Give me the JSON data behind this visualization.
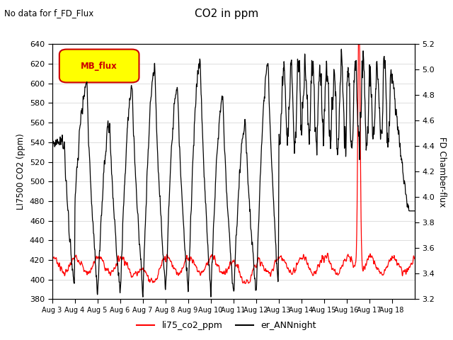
{
  "title": "CO2 in ppm",
  "subtitle": "No data for f_FD_Flux",
  "ylabel_left": "LI7500 CO2 (ppm)",
  "ylabel_right": "FD Chamber-flux",
  "ylim_left": [
    380,
    640
  ],
  "ylim_right": [
    3.2,
    5.2
  ],
  "yticks_left": [
    380,
    400,
    420,
    440,
    460,
    480,
    500,
    520,
    540,
    560,
    580,
    600,
    620,
    640
  ],
  "yticks_right": [
    3.2,
    3.4,
    3.6,
    3.8,
    4.0,
    4.2,
    4.4,
    4.6,
    4.8,
    5.0,
    5.2
  ],
  "xtick_labels": [
    "Aug 3",
    "Aug 4",
    "Aug 5",
    "Aug 6",
    "Aug 7",
    "Aug 8",
    "Aug 9",
    "Aug 10",
    "Aug 11",
    "Aug 12",
    "Aug 13",
    "Aug 14",
    "Aug 15",
    "Aug 16",
    "Aug 17",
    "Aug 18"
  ],
  "legend_label_red": "li75_co2_ppm",
  "legend_label_black": "er_ANNnight",
  "mb_flux_label": "MB_flux",
  "line_color_red": "#ff0000",
  "line_color_black": "#000000",
  "mb_flux_bg": "#ffff00",
  "mb_flux_border": "#cc0000",
  "background_color": "#ffffff",
  "grid_color": "#d0d0d0"
}
